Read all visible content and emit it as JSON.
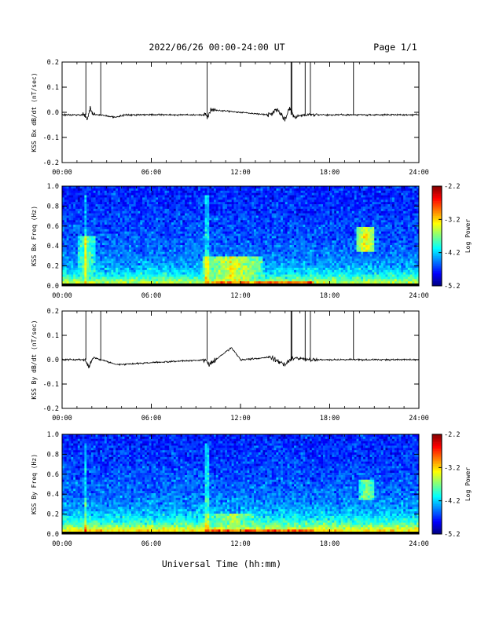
{
  "header": {
    "title": "2022/06/26  00:00-24:00 UT",
    "page_label": "Page 1/1"
  },
  "footer": {
    "xlabel": "Universal Time (hh:mm)"
  },
  "chart_data": [
    {
      "type": "line",
      "ylabel": "KSS Bx dB/dt (nT/sec)",
      "xlim": [
        0,
        24
      ],
      "ylim": [
        -0.2,
        0.2
      ],
      "x_ticks": [
        "00:00",
        "06:00",
        "12:00",
        "18:00",
        "24:00"
      ],
      "y_ticks": [
        "0.2",
        "0.1",
        "0.0",
        "-0.1",
        "-0.2"
      ],
      "baseline": -0.01,
      "spikes_hours": [
        1.6,
        2.6,
        9.75,
        15.4,
        15.45,
        16.35,
        16.7,
        19.6
      ],
      "series": [
        {
          "x": [
            0,
            1.5,
            1.7,
            1.9,
            2.1,
            2.7,
            3.6,
            4.2,
            9.6,
            9.8,
            10.0,
            13.9,
            14.5,
            15.0,
            15.3,
            15.6,
            16.2,
            16.6,
            17.0,
            18.0,
            20.0,
            22.0,
            24.0
          ],
          "y": [
            -0.01,
            -0.01,
            -0.03,
            0.02,
            -0.01,
            -0.01,
            -0.02,
            -0.01,
            -0.01,
            -0.02,
            0.01,
            -0.01,
            0.01,
            -0.03,
            0.02,
            -0.02,
            -0.01,
            -0.01,
            -0.01,
            -0.01,
            -0.01,
            -0.01,
            -0.01
          ]
        }
      ]
    },
    {
      "type": "heatmap",
      "ylabel": "KSS Bx Freq (Hz)",
      "xlim": [
        0,
        24
      ],
      "ylim": [
        0.0,
        1.0
      ],
      "x_ticks": [
        "00:00",
        "06:00",
        "12:00",
        "18:00",
        "24:00"
      ],
      "y_ticks": [
        "1.0",
        "0.8",
        "0.6",
        "0.4",
        "0.2",
        "0.0"
      ],
      "colorbar": {
        "label": "Log Power",
        "range": [
          -5.2,
          -2.2
        ],
        "ticks": [
          "-2.2",
          "-3.2",
          "-4.2",
          "-5.2"
        ]
      },
      "features": [
        {
          "x": [
            9.5,
            13.5
          ],
          "y": [
            0.0,
            0.3
          ],
          "power": -3.4
        },
        {
          "x": [
            19.8,
            21.0
          ],
          "y": [
            0.35,
            0.6
          ],
          "power": -3.3
        },
        {
          "x": [
            1.0,
            2.3
          ],
          "y": [
            0.1,
            0.5
          ],
          "power": -3.7
        }
      ]
    },
    {
      "type": "line",
      "ylabel": "KSS By dB/dt (nT/sec)",
      "xlim": [
        0,
        24
      ],
      "ylim": [
        -0.2,
        0.2
      ],
      "x_ticks": [
        "00:00",
        "06:00",
        "12:00",
        "18:00",
        "24:00"
      ],
      "y_ticks": [
        "0.2",
        "0.1",
        "0.0",
        "-0.1",
        "-0.2"
      ],
      "baseline": 0.0,
      "spikes_hours": [
        1.6,
        2.6,
        9.75,
        15.4,
        15.45,
        16.35,
        16.7,
        19.6
      ],
      "series": [
        {
          "x": [
            0,
            1.5,
            1.8,
            2.1,
            2.6,
            3.7,
            9.6,
            9.9,
            11.4,
            12.0,
            14.0,
            15.0,
            15.5,
            16.6,
            18.0,
            20.0,
            22.0,
            24.0
          ],
          "y": [
            0.0,
            0.0,
            -0.03,
            0.01,
            0.0,
            -0.02,
            0.0,
            -0.02,
            0.05,
            0.0,
            0.01,
            -0.02,
            0.01,
            0.0,
            0.0,
            0.0,
            0.0,
            0.0
          ]
        }
      ]
    },
    {
      "type": "heatmap",
      "ylabel": "KSS By Freq (Hz)",
      "xlim": [
        0,
        24
      ],
      "ylim": [
        0.0,
        1.0
      ],
      "x_ticks": [
        "00:00",
        "06:00",
        "12:00",
        "18:00",
        "24:00"
      ],
      "y_ticks": [
        "1.0",
        "0.8",
        "0.6",
        "0.4",
        "0.2",
        "0.0"
      ],
      "colorbar": {
        "label": "Log Power",
        "range": [
          -5.2,
          -2.2
        ],
        "ticks": [
          "-2.2",
          "-3.2",
          "-4.2",
          "-5.2"
        ]
      },
      "features": [
        {
          "x": [
            9.5,
            13.5
          ],
          "y": [
            0.0,
            0.2
          ],
          "power": -3.6
        },
        {
          "x": [
            20.0,
            21.0
          ],
          "y": [
            0.35,
            0.55
          ],
          "power": -3.6
        }
      ]
    }
  ]
}
